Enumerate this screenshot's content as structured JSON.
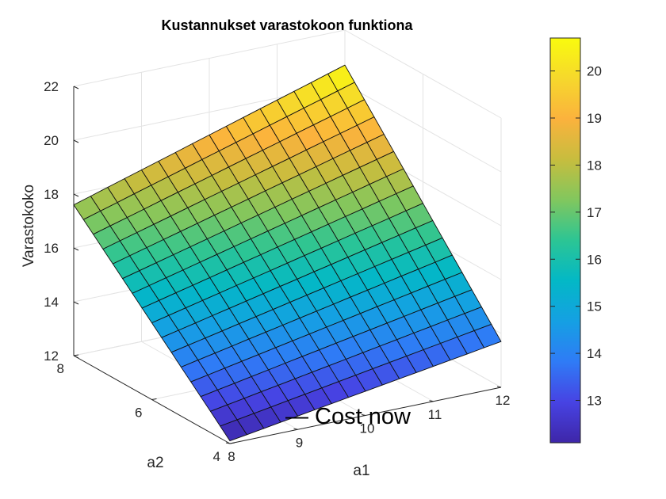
{
  "chart_data": {
    "type": "surface",
    "title": "Kustannukset varastokoon funktiona",
    "xlabel": "a1",
    "ylabel": "a2",
    "zlabel": "Varastokoko",
    "x_ticks": [
      "8",
      "9",
      "10",
      "11",
      "12"
    ],
    "y_ticks": [
      "4",
      "6",
      "8"
    ],
    "z_ticks": [
      "12",
      "14",
      "16",
      "18",
      "20",
      "22"
    ],
    "xlim": [
      8,
      12
    ],
    "ylim": [
      4,
      8
    ],
    "zlim": [
      12,
      22
    ],
    "grid": true,
    "surface": {
      "x_range": [
        8,
        12
      ],
      "y_range": [
        4,
        8
      ],
      "grid_divisions": 16,
      "corner_values": [
        {
          "a1": 8,
          "a2": 4,
          "value": 12.1
        },
        {
          "a1": 12,
          "a2": 4,
          "value": 13.7
        },
        {
          "a1": 8,
          "a2": 8,
          "value": 17.6
        },
        {
          "a1": 12,
          "a2": 8,
          "value": 20.7
        }
      ]
    },
    "annotation": "— Cost now",
    "colorbar": {
      "colormap": "parula",
      "range": [
        12.1,
        20.7
      ],
      "ticks": [
        "13",
        "14",
        "15",
        "16",
        "17",
        "18",
        "19",
        "20"
      ],
      "colors": [
        "#3e26a8",
        "#4743e3",
        "#2f7bf6",
        "#15a0e3",
        "#03b8c6",
        "#2cc594",
        "#81c75e",
        "#c7bd3e",
        "#fbb23d",
        "#f6d82c",
        "#f9fb0e"
      ]
    }
  }
}
